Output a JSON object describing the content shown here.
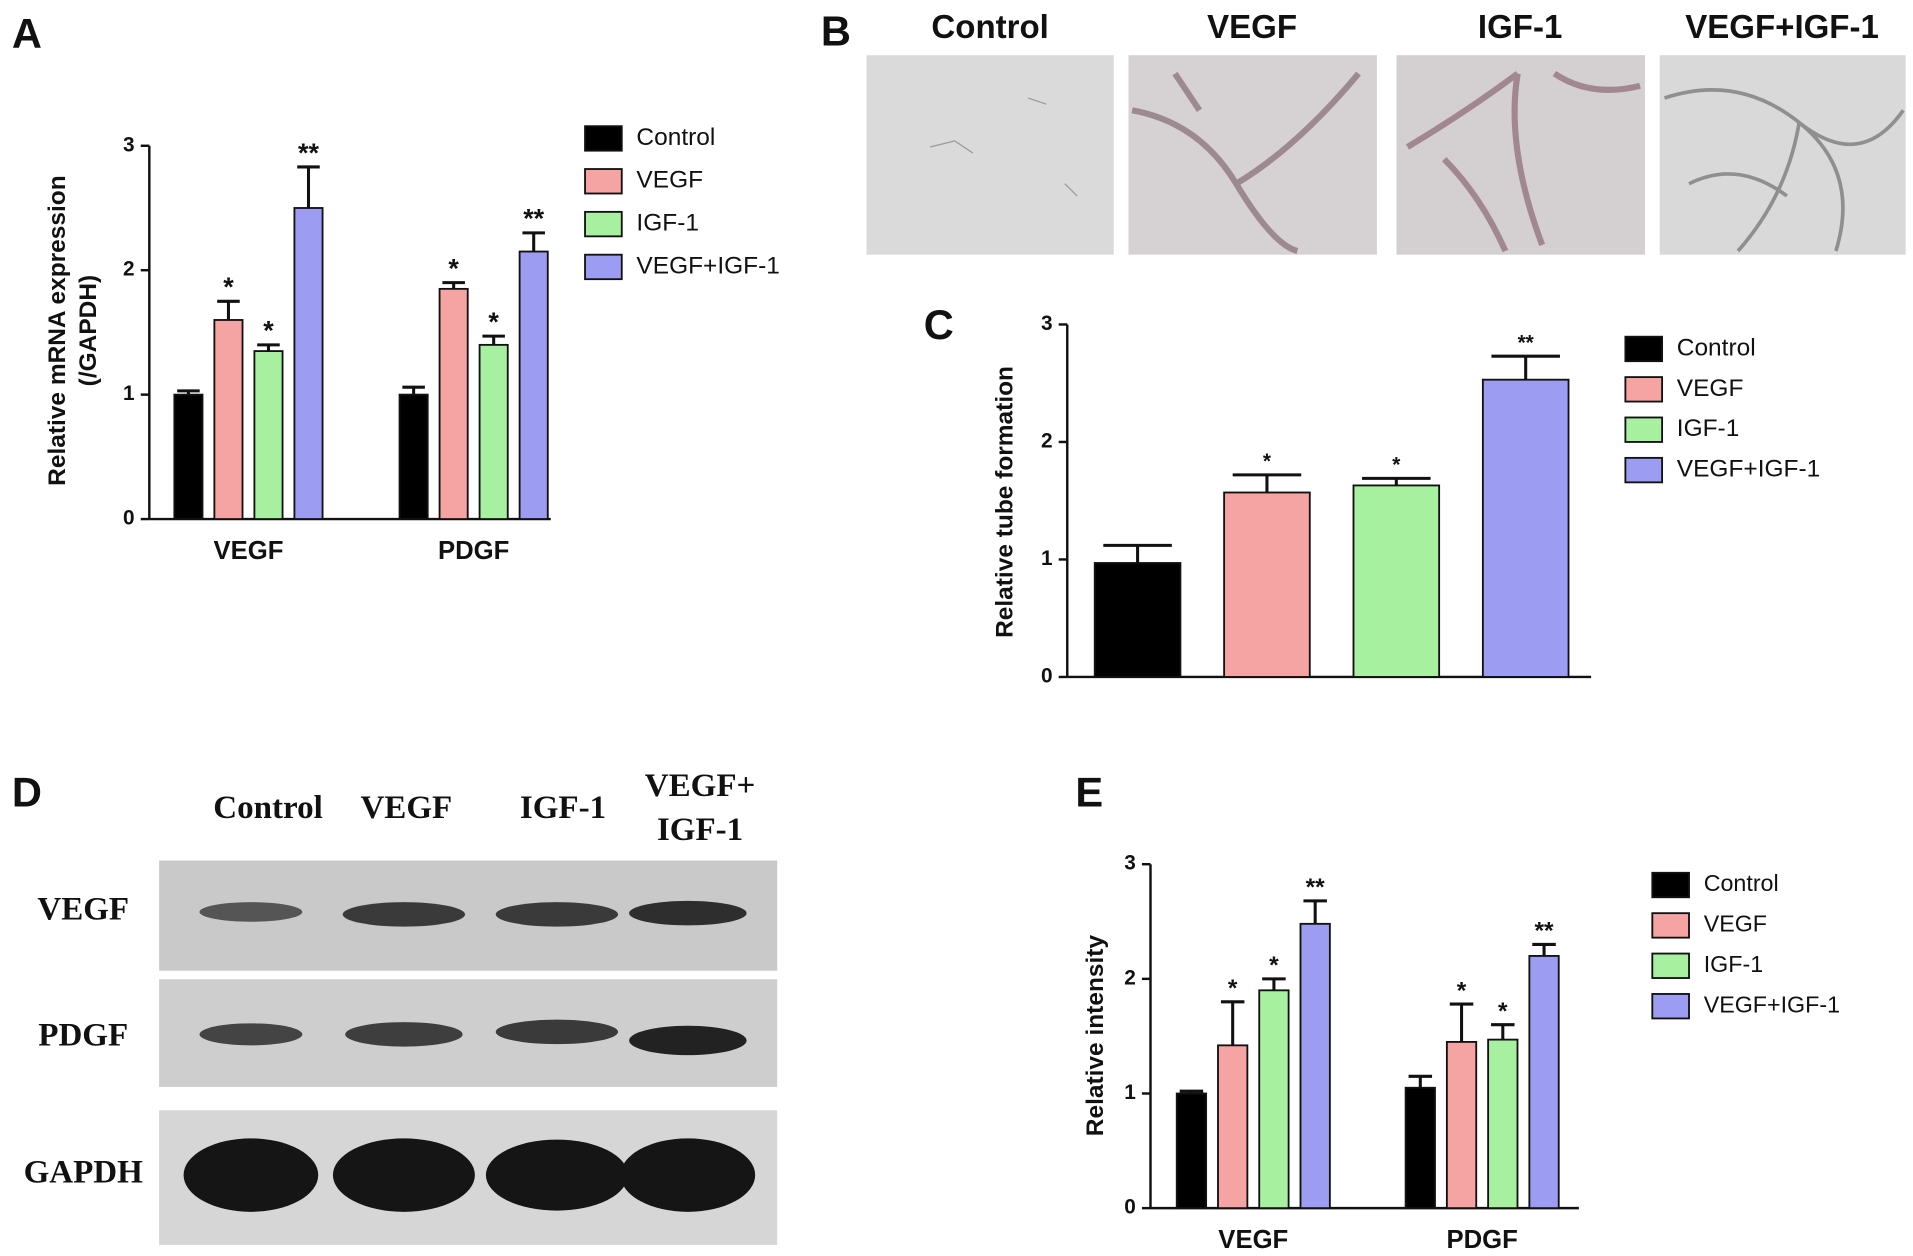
{
  "panel_labels": [
    "A",
    "B",
    "C",
    "D",
    "E"
  ],
  "images": {
    "titles": [
      "Control",
      "VEGF",
      "IGF-1",
      "VEGF+IGF-1"
    ]
  },
  "blot": {
    "columns": [
      [
        "Control"
      ],
      [
        "VEGF"
      ],
      [
        "IGF-1"
      ],
      [
        "VEGF+",
        "IGF-1"
      ]
    ],
    "rows": [
      "VEGF",
      "PDGF",
      "GAPDH"
    ]
  },
  "chart_data": [
    {
      "type": "bar",
      "ylabel": [
        "Relative mRNA expression",
        "(/GAPDH)"
      ],
      "categories": [
        "VEGF",
        "PDGF"
      ],
      "ylim": [
        0,
        3
      ],
      "yticks": [
        0,
        1,
        2,
        3
      ],
      "series": [
        {
          "name": "Control",
          "color": "#000000",
          "values": [
            1.0,
            1.0
          ],
          "errors": [
            0.03,
            0.06
          ]
        },
        {
          "name": "VEGF",
          "color": "#f5a3a3",
          "values": [
            1.6,
            1.85
          ],
          "errors": [
            0.15,
            0.05
          ],
          "significance": [
            "*",
            "*"
          ]
        },
        {
          "name": "IGF-1",
          "color": "#a6f0a0",
          "values": [
            1.35,
            1.4
          ],
          "errors": [
            0.05,
            0.07
          ],
          "significance": [
            "*",
            "*"
          ]
        },
        {
          "name": "VEGF+IGF-1",
          "color": "#9c9cf2",
          "values": [
            2.5,
            2.15
          ],
          "errors": [
            0.33,
            0.15
          ],
          "significance": [
            "**",
            "**"
          ]
        }
      ]
    },
    {
      "type": "bar",
      "ylabel": "Relative tube formation",
      "ylim": [
        0,
        3
      ],
      "yticks": [
        0,
        1,
        2,
        3
      ],
      "series": [
        {
          "name": "Control",
          "color": "#000000",
          "values": [
            0.97
          ],
          "errors": [
            0.15
          ]
        },
        {
          "name": "VEGF",
          "color": "#f5a3a3",
          "values": [
            1.57
          ],
          "errors": [
            0.15
          ],
          "significance": [
            "*"
          ]
        },
        {
          "name": "IGF-1",
          "color": "#a6f0a0",
          "values": [
            1.63
          ],
          "errors": [
            0.06
          ],
          "significance": [
            "*"
          ]
        },
        {
          "name": "VEGF+IGF-1",
          "color": "#9c9cf2",
          "values": [
            2.53
          ],
          "errors": [
            0.2
          ],
          "significance": [
            "**"
          ]
        }
      ]
    },
    {
      "type": "bar",
      "ylabel": "Relative intensity",
      "categories": [
        "VEGF",
        "PDGF"
      ],
      "ylim": [
        0,
        3
      ],
      "yticks": [
        0,
        1,
        2,
        3
      ],
      "series": [
        {
          "name": "Control",
          "color": "#000000",
          "values": [
            1.0,
            1.05
          ],
          "errors": [
            0.02,
            0.1
          ]
        },
        {
          "name": "VEGF",
          "color": "#f5a3a3",
          "values": [
            1.42,
            1.45
          ],
          "errors": [
            0.38,
            0.33
          ],
          "significance": [
            "*",
            "*"
          ]
        },
        {
          "name": "IGF-1",
          "color": "#a6f0a0",
          "values": [
            1.9,
            1.47
          ],
          "errors": [
            0.1,
            0.13
          ],
          "significance": [
            "*",
            "*"
          ]
        },
        {
          "name": "VEGF+IGF-1",
          "color": "#9c9cf2",
          "values": [
            2.48,
            2.2
          ],
          "errors": [
            0.2,
            0.1
          ],
          "significance": [
            "**",
            "**"
          ]
        }
      ]
    }
  ]
}
